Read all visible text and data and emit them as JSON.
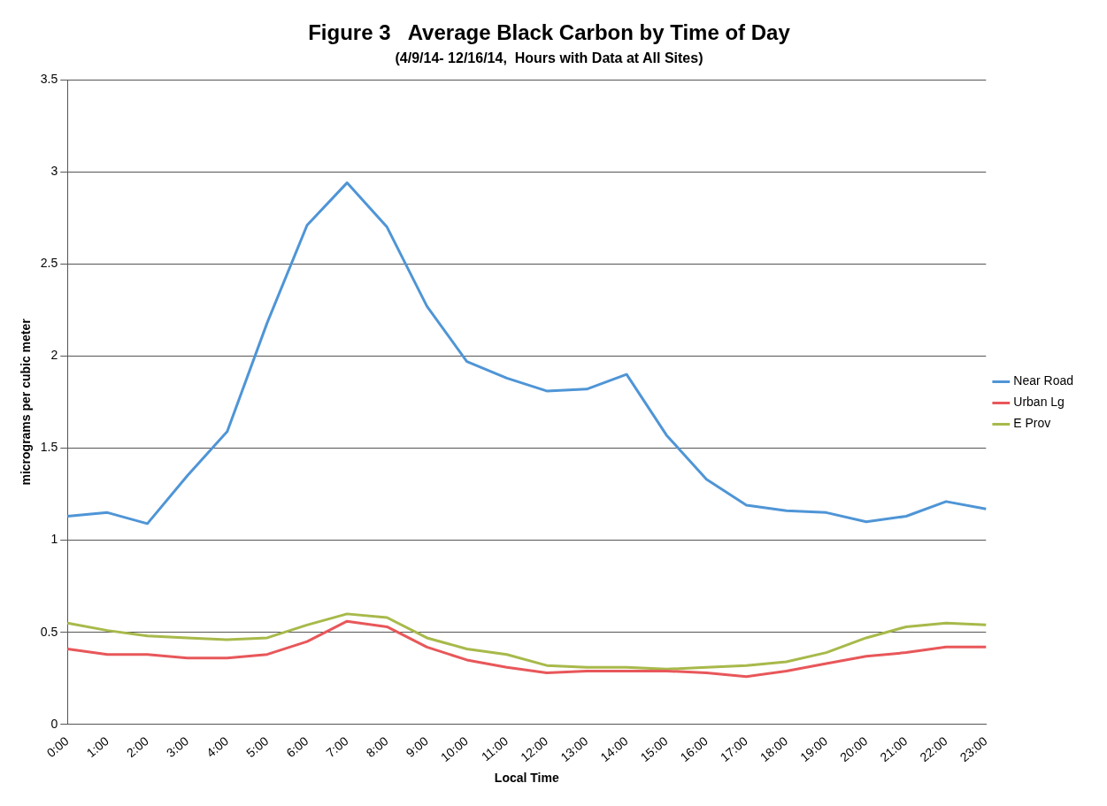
{
  "chart_data": {
    "type": "line",
    "title": "Figure 3   Average Black Carbon by Time of Day",
    "subtitle": "(4/9/14- 12/16/14,  Hours with Data at All Sites)",
    "xlabel": "Local Time",
    "ylabel": "micrograms per cubic meter",
    "categories": [
      "0:00",
      "1:00",
      "2:00",
      "3:00",
      "4:00",
      "5:00",
      "6:00",
      "7:00",
      "8:00",
      "9:00",
      "10:00",
      "11:00",
      "12:00",
      "13:00",
      "14:00",
      "15:00",
      "16:00",
      "17:00",
      "18:00",
      "19:00",
      "20:00",
      "21:00",
      "22:00",
      "23:00"
    ],
    "series": [
      {
        "name": "Near Road",
        "color": "#4f95d6",
        "values": [
          1.13,
          1.15,
          1.09,
          1.35,
          1.59,
          2.18,
          2.71,
          2.94,
          2.7,
          2.27,
          1.97,
          1.88,
          1.81,
          1.82,
          1.9,
          1.57,
          1.33,
          1.19,
          1.16,
          1.15,
          1.1,
          1.13,
          1.21,
          1.17
        ]
      },
      {
        "name": "Urban Lg",
        "color": "#e8575a",
        "values": [
          0.41,
          0.38,
          0.38,
          0.36,
          0.36,
          0.38,
          0.45,
          0.56,
          0.53,
          0.42,
          0.35,
          0.31,
          0.28,
          0.29,
          0.29,
          0.29,
          0.28,
          0.26,
          0.29,
          0.33,
          0.37,
          0.39,
          0.42,
          0.42
        ]
      },
      {
        "name": "E Prov",
        "color": "#a8b94a",
        "values": [
          0.55,
          0.51,
          0.48,
          0.47,
          0.46,
          0.47,
          0.54,
          0.6,
          0.58,
          0.47,
          0.41,
          0.38,
          0.32,
          0.31,
          0.31,
          0.3,
          0.31,
          0.32,
          0.34,
          0.39,
          0.47,
          0.53,
          0.55,
          0.54
        ]
      }
    ],
    "ylim": [
      0,
      3.5
    ],
    "yticks": [
      0,
      0.5,
      1,
      1.5,
      2,
      2.5,
      3,
      3.5
    ],
    "grid": "y",
    "legend": "right",
    "marker": "none",
    "line_style": "solid"
  }
}
